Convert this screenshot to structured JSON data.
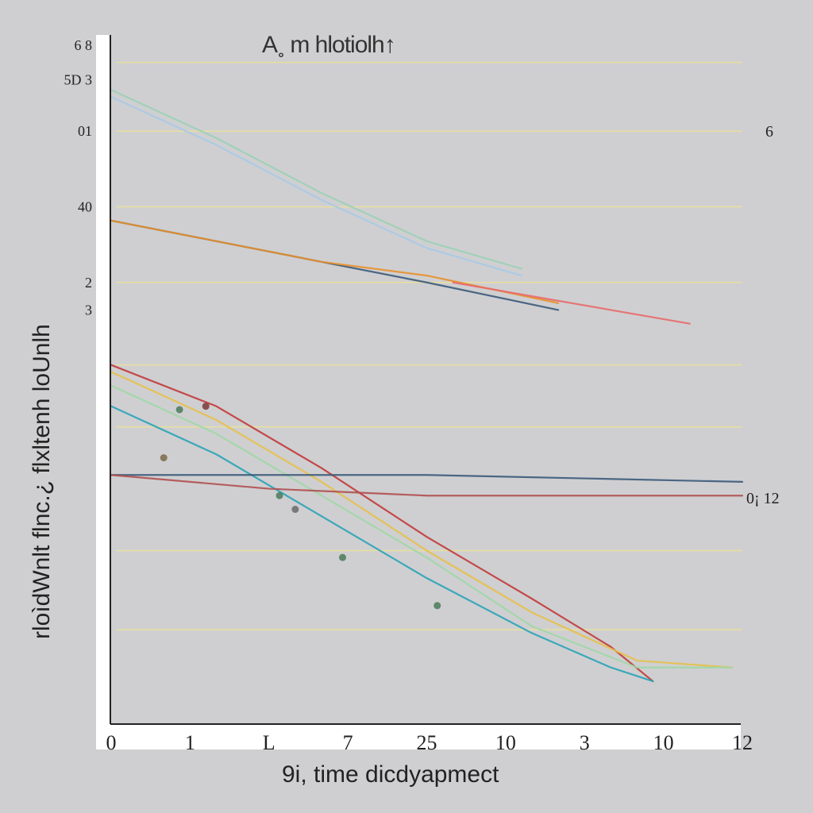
{
  "chart_data": {
    "type": "line",
    "title": "A˳ m hlotiolh↑",
    "xlabel": "9i,   time dicdyapmect",
    "ylabel": "rloìdWnlt flnc.¿ flxltenh loUnlh",
    "x_ticks": [
      "0",
      "1",
      "L",
      "7",
      "25",
      "10",
      "3",
      "10",
      "12"
    ],
    "y_ticks": [
      "6 8",
      "5D 3",
      "01",
      "40",
      "2",
      "3"
    ],
    "right_labels": [
      "6",
      "0¡ 12"
    ],
    "xlim": [
      0,
      12
    ],
    "ylim": [
      0,
      10
    ],
    "grid": true,
    "series": [
      {
        "color": "#9ccfb6",
        "x": [
          0,
          2,
          4,
          6,
          7.8
        ],
        "y": [
          9.2,
          8.5,
          7.7,
          7.0,
          6.6
        ]
      },
      {
        "color": "#a9c9e6",
        "x": [
          0,
          2,
          4,
          6,
          7.8
        ],
        "y": [
          9.1,
          8.4,
          7.6,
          6.9,
          6.5
        ]
      },
      {
        "color": "#3b5a7a",
        "x": [
          0,
          2,
          4,
          6,
          8.5
        ],
        "y": [
          7.3,
          7.0,
          6.7,
          6.4,
          6.0
        ]
      },
      {
        "color": "#e8902a",
        "x": [
          0,
          2,
          4,
          6,
          8.5
        ],
        "y": [
          7.3,
          7.0,
          6.7,
          6.5,
          6.1
        ]
      },
      {
        "color": "#e86a6a",
        "x": [
          6.5,
          8,
          9.5,
          11
        ],
        "y": [
          6.4,
          6.2,
          6.0,
          5.8
        ]
      },
      {
        "color": "#c23a3a",
        "x": [
          0,
          2,
          4,
          6,
          8,
          9.5,
          10.3
        ],
        "y": [
          5.2,
          4.6,
          3.7,
          2.7,
          1.8,
          1.1,
          0.6
        ]
      },
      {
        "color": "#e6c04a",
        "x": [
          0,
          2,
          4,
          6,
          8,
          10,
          11.8
        ],
        "y": [
          5.1,
          4.4,
          3.5,
          2.5,
          1.6,
          0.9,
          0.8
        ]
      },
      {
        "color": "#9ed7a6",
        "x": [
          0,
          2,
          4,
          6,
          8,
          10,
          11.8
        ],
        "y": [
          4.9,
          4.2,
          3.3,
          2.4,
          1.4,
          0.8,
          0.8
        ]
      },
      {
        "color": "#2aa3b7",
        "x": [
          0,
          2,
          4,
          6,
          8,
          9.5,
          10.3
        ],
        "y": [
          4.6,
          3.9,
          3.0,
          2.1,
          1.3,
          0.8,
          0.6
        ]
      },
      {
        "color": "#3b5a7a",
        "x": [
          0,
          3,
          6,
          9,
          12
        ],
        "y": [
          3.6,
          3.6,
          3.6,
          3.55,
          3.5
        ]
      },
      {
        "color": "#b05050",
        "x": [
          0,
          3,
          6,
          9,
          12
        ],
        "y": [
          3.6,
          3.4,
          3.3,
          3.3,
          3.3
        ]
      }
    ],
    "markers": [
      {
        "color": "#4a7a5a",
        "x": 1.3,
        "y": 4.55
      },
      {
        "color": "#7a3a3a",
        "x": 1.8,
        "y": 4.6
      },
      {
        "color": "#7a6a4a",
        "x": 1.0,
        "y": 3.85
      },
      {
        "color": "#4a7a5a",
        "x": 3.2,
        "y": 3.3
      },
      {
        "color": "#6a6a6a",
        "x": 3.5,
        "y": 3.1
      },
      {
        "color": "#4a7a5a",
        "x": 4.4,
        "y": 2.4
      },
      {
        "color": "#4a7a5a",
        "x": 6.2,
        "y": 1.7
      }
    ]
  }
}
